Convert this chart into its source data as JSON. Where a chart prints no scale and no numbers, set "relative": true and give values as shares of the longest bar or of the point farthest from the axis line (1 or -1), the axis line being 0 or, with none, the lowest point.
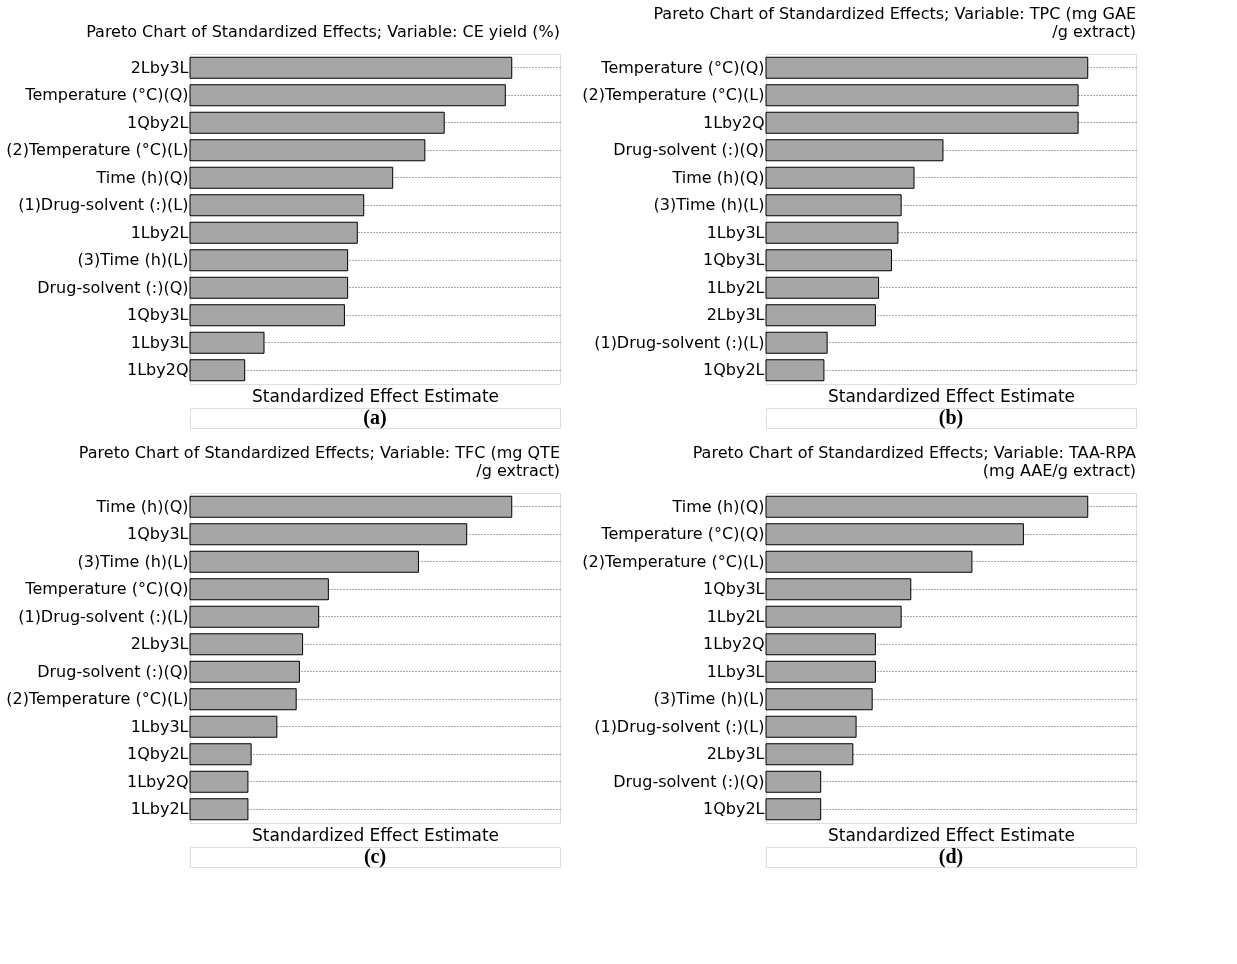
{
  "chart_data": [
    {
      "type": "bar",
      "orientation": "horizontal",
      "relative": true,
      "title": "Pareto Chart of Standardized Effects; Variable: CE yield (%)",
      "xlabel": "Standardized Effect Estimate",
      "categories": [
        "2Lby3L",
        "Temperature (°C)(Q)",
        "1Qby2L",
        "(2)Temperature (°C)(L)",
        "Time (h)(Q)",
        "(1)Drug-solvent (:)(L)",
        "1Lby2L",
        "(3)Time (h)(L)",
        "Drug-solvent (:)(Q)",
        "1Qby3L",
        "1Lby3L",
        "1Lby2Q"
      ],
      "values": [
        1,
        0.98,
        0.79,
        0.73,
        0.63,
        0.54,
        0.52,
        0.49,
        0.49,
        0.48,
        0.23,
        0.17
      ],
      "color": "#a6a6a6",
      "grid": "y",
      "annotations": [
        "(a)"
      ]
    },
    {
      "type": "bar",
      "orientation": "horizontal",
      "relative": true,
      "title": "Pareto Chart of Standardized Effects; Variable: TPC (mg GAE\n/g extract)",
      "xlabel": "Standardized Effect Estimate",
      "categories": [
        "Temperature (°C)(Q)",
        "(2)Temperature (°C)(L)",
        "1Lby2Q",
        "Drug-solvent (:)(Q)",
        "Time (h)(Q)",
        "(3)Time (h)(L)",
        "1Lby3L",
        "1Qby3L",
        "1Lby2L",
        "2Lby3L",
        "(1)Drug-solvent (:)(L)",
        "1Qby2L"
      ],
      "values": [
        1,
        0.97,
        0.97,
        0.55,
        0.46,
        0.42,
        0.41,
        0.39,
        0.35,
        0.34,
        0.19,
        0.18
      ],
      "color": "#a6a6a6",
      "grid": "y",
      "annotations": [
        "(b)"
      ]
    },
    {
      "type": "bar",
      "orientation": "horizontal",
      "relative": true,
      "title": "Pareto Chart of Standardized Effects; Variable: TFC (mg QTE\n/g extract)",
      "xlabel": "Standardized Effect Estimate",
      "categories": [
        "Time (h)(Q)",
        "1Qby3L",
        "(3)Time (h)(L)",
        "Temperature (°C)(Q)",
        "(1)Drug-solvent (:)(L)",
        "2Lby3L",
        "Drug-solvent (:)(Q)",
        "(2)Temperature (°C)(L)",
        "1Lby3L",
        "1Qby2L",
        "1Lby2Q",
        "1Lby2L"
      ],
      "values": [
        1,
        0.86,
        0.71,
        0.43,
        0.4,
        0.35,
        0.34,
        0.33,
        0.27,
        0.19,
        0.18,
        0.18
      ],
      "color": "#a6a6a6",
      "grid": "y",
      "annotations": [
        "(c)"
      ]
    },
    {
      "type": "bar",
      "orientation": "horizontal",
      "relative": true,
      "title": "Pareto Chart of Standardized Effects; Variable: TAA-RPA\n(mg AAE/g extract)",
      "xlabel": "Standardized Effect Estimate",
      "categories": [
        "Time (h)(Q)",
        "Temperature (°C)(Q)",
        "(2)Temperature (°C)(L)",
        "1Qby3L",
        "1Lby2L",
        "1Lby2Q",
        "1Lby3L",
        "(3)Time (h)(L)",
        "(1)Drug-solvent (:)(L)",
        "2Lby3L",
        "Drug-solvent (:)(Q)",
        "1Qby2L"
      ],
      "values": [
        1,
        0.8,
        0.64,
        0.45,
        0.42,
        0.34,
        0.34,
        0.33,
        0.28,
        0.27,
        0.17,
        0.17
      ],
      "color": "#a6a6a6",
      "grid": "y",
      "annotations": [
        "(d)"
      ]
    }
  ]
}
